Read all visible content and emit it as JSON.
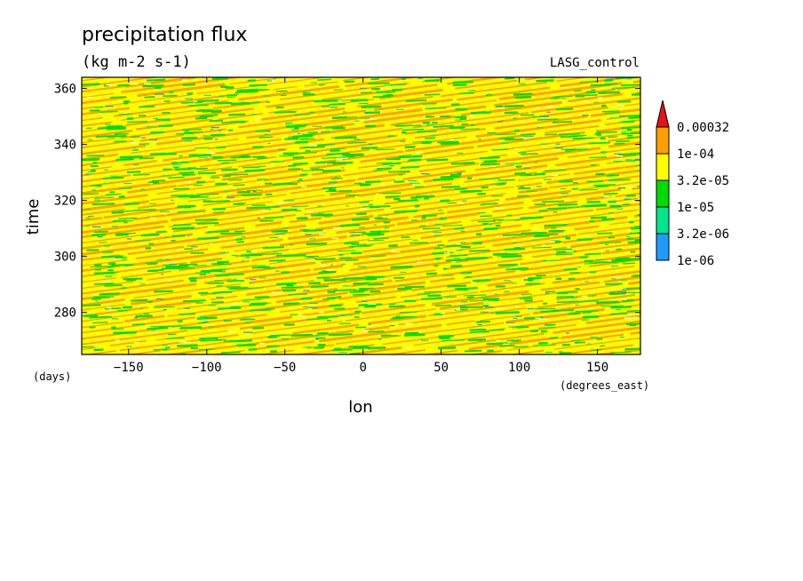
{
  "chart_data": {
    "type": "heatmap",
    "title": "precipitation flux",
    "units": "(kg m-2 s-1)",
    "run_label": "LASG_control",
    "xlabel": "lon",
    "xunits": "(degrees_east)",
    "ylabel": "time",
    "yunits": "(days)",
    "xlim": [
      -180,
      177.5
    ],
    "ylim": [
      265,
      364
    ],
    "xticks": [
      -150,
      -100,
      -50,
      0,
      50,
      100,
      150
    ],
    "xtick_labels": [
      "−150",
      "−100",
      "−50",
      "0",
      "50",
      "100",
      "150"
    ],
    "yticks": [
      280,
      300,
      320,
      340,
      360
    ],
    "ytick_labels": [
      "280",
      "300",
      "320",
      "340",
      "360"
    ],
    "colorbar": {
      "levels": [
        "1e-06",
        "3.2e-06",
        "1e-05",
        "3.2e-05",
        "1e-04",
        "0.00032"
      ],
      "colors": [
        "#1e9bff",
        "#00e68c",
        "#00dc00",
        "#ffff00",
        "#ffa000",
        "#e61414"
      ],
      "extend": "max"
    },
    "field_description": "eastward-propagating diagonal bands of precipitation; dominant classes 3.2e-05 to 1e-04 and 1e-04 to 0.00032 with patches of 1e-05 to 3.2e-05"
  }
}
